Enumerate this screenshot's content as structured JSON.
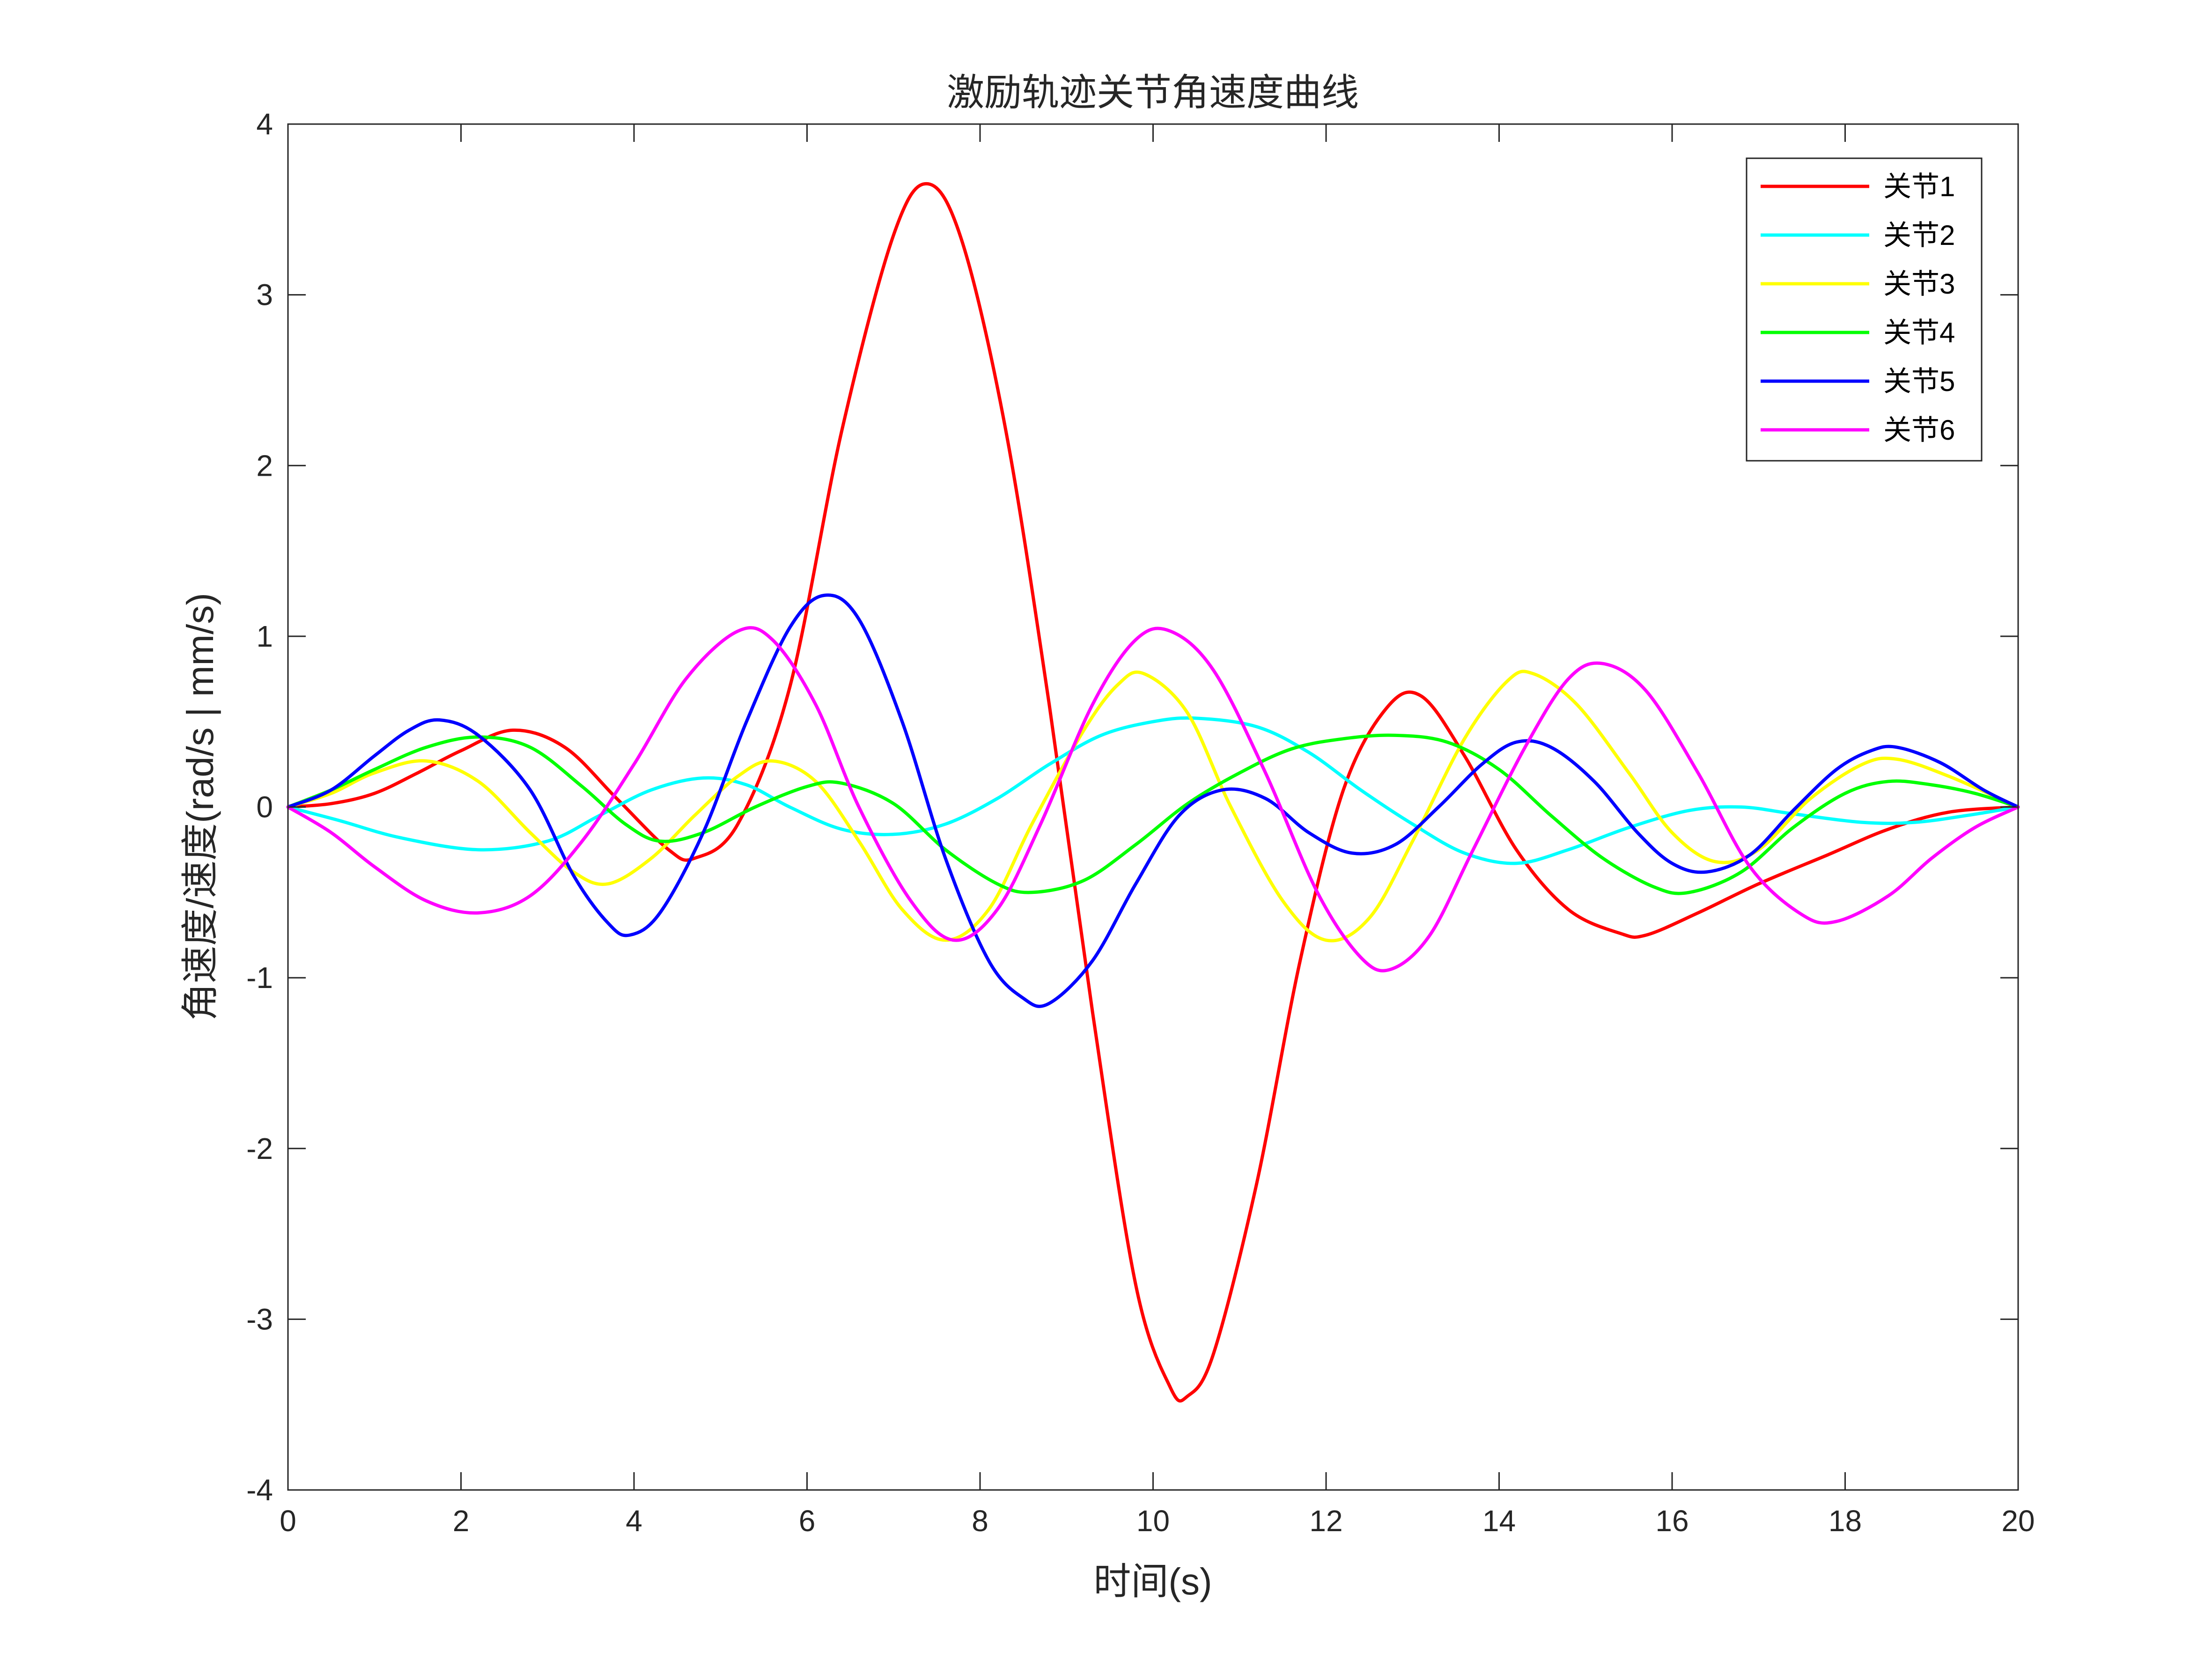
{
  "chart_data": {
    "type": "line",
    "title": "激励轨迹关节角速度曲线",
    "xlabel": "时间(s)",
    "ylabel": "角速度/速度(rad/s | mm/s)",
    "xlim": [
      0,
      20
    ],
    "ylim": [
      -4,
      4
    ],
    "x_ticks": [
      "0",
      "2",
      "4",
      "6",
      "8",
      "10",
      "12",
      "14",
      "16",
      "18",
      "20"
    ],
    "y_ticks": [
      "4",
      "3",
      "2",
      "1",
      "0",
      "-1",
      "-2",
      "-3",
      "-4"
    ],
    "grid": false,
    "legend_position": "top-right",
    "series": [
      {
        "name": "关节1",
        "color": "#FF0000",
        "points": [
          [
            0,
            0
          ],
          [
            0.5,
            0.02
          ],
          [
            1,
            0.08
          ],
          [
            1.5,
            0.2
          ],
          [
            2,
            0.33
          ],
          [
            2.6,
            0.45
          ],
          [
            3.2,
            0.35
          ],
          [
            3.8,
            0.05
          ],
          [
            4.4,
            -0.25
          ],
          [
            4.7,
            -0.3
          ],
          [
            5.2,
            -0.1
          ],
          [
            5.8,
            0.7
          ],
          [
            6.4,
            2.2
          ],
          [
            7,
            3.35
          ],
          [
            7.4,
            3.65
          ],
          [
            7.8,
            3.3
          ],
          [
            8.3,
            2.2
          ],
          [
            8.8,
            0.6
          ],
          [
            9.3,
            -1.2
          ],
          [
            9.8,
            -2.8
          ],
          [
            10.2,
            -3.4
          ],
          [
            10.4,
            -3.45
          ],
          [
            10.7,
            -3.2
          ],
          [
            11.2,
            -2.2
          ],
          [
            11.7,
            -0.9
          ],
          [
            12.2,
            0.1
          ],
          [
            12.7,
            0.58
          ],
          [
            13.1,
            0.65
          ],
          [
            13.6,
            0.3
          ],
          [
            14.2,
            -0.25
          ],
          [
            14.8,
            -0.6
          ],
          [
            15.4,
            -0.74
          ],
          [
            15.7,
            -0.75
          ],
          [
            16.3,
            -0.62
          ],
          [
            17,
            -0.45
          ],
          [
            17.8,
            -0.28
          ],
          [
            18.5,
            -0.13
          ],
          [
            19.2,
            -0.03
          ],
          [
            20,
            0
          ]
        ]
      },
      {
        "name": "关节2",
        "color": "#00FFFF",
        "points": [
          [
            0,
            0
          ],
          [
            0.6,
            -0.08
          ],
          [
            1.3,
            -0.18
          ],
          [
            2.2,
            -0.25
          ],
          [
            3,
            -0.2
          ],
          [
            3.6,
            -0.05
          ],
          [
            4.2,
            0.1
          ],
          [
            4.8,
            0.17
          ],
          [
            5.3,
            0.13
          ],
          [
            5.8,
            0
          ],
          [
            6.4,
            -0.13
          ],
          [
            7,
            -0.16
          ],
          [
            7.6,
            -0.1
          ],
          [
            8.2,
            0.05
          ],
          [
            8.8,
            0.25
          ],
          [
            9.4,
            0.42
          ],
          [
            10,
            0.5
          ],
          [
            10.5,
            0.52
          ],
          [
            11.2,
            0.47
          ],
          [
            11.8,
            0.32
          ],
          [
            12.4,
            0.1
          ],
          [
            13,
            -0.1
          ],
          [
            13.6,
            -0.27
          ],
          [
            14.2,
            -0.33
          ],
          [
            14.8,
            -0.25
          ],
          [
            15.5,
            -0.12
          ],
          [
            16.2,
            -0.02
          ],
          [
            16.8,
            0
          ],
          [
            17.4,
            -0.04
          ],
          [
            18.2,
            -0.09
          ],
          [
            18.8,
            -0.09
          ],
          [
            19.4,
            -0.05
          ],
          [
            20,
            0
          ]
        ]
      },
      {
        "name": "关节3",
        "color": "#FFFF00",
        "points": [
          [
            0,
            0
          ],
          [
            0.5,
            0.08
          ],
          [
            1,
            0.2
          ],
          [
            1.6,
            0.27
          ],
          [
            2.2,
            0.15
          ],
          [
            2.8,
            -0.15
          ],
          [
            3.3,
            -0.38
          ],
          [
            3.7,
            -0.45
          ],
          [
            4.2,
            -0.3
          ],
          [
            4.7,
            -0.05
          ],
          [
            5.2,
            0.18
          ],
          [
            5.6,
            0.27
          ],
          [
            6.1,
            0.15
          ],
          [
            6.6,
            -0.2
          ],
          [
            7.1,
            -0.6
          ],
          [
            7.6,
            -0.78
          ],
          [
            8.1,
            -0.6
          ],
          [
            8.6,
            -0.1
          ],
          [
            9.2,
            0.45
          ],
          [
            9.6,
            0.72
          ],
          [
            9.9,
            0.78
          ],
          [
            10.4,
            0.55
          ],
          [
            10.9,
            0
          ],
          [
            11.5,
            -0.55
          ],
          [
            12,
            -0.78
          ],
          [
            12.5,
            -0.65
          ],
          [
            13,
            -0.2
          ],
          [
            13.6,
            0.4
          ],
          [
            14.1,
            0.74
          ],
          [
            14.4,
            0.78
          ],
          [
            14.9,
            0.6
          ],
          [
            15.5,
            0.2
          ],
          [
            16,
            -0.15
          ],
          [
            16.5,
            -0.32
          ],
          [
            17,
            -0.25
          ],
          [
            17.6,
            0.05
          ],
          [
            18.2,
            0.25
          ],
          [
            18.6,
            0.28
          ],
          [
            19.2,
            0.18
          ],
          [
            20,
            0
          ]
        ]
      },
      {
        "name": "关节4",
        "color": "#00FF00",
        "points": [
          [
            0,
            0
          ],
          [
            0.5,
            0.1
          ],
          [
            1,
            0.22
          ],
          [
            1.6,
            0.35
          ],
          [
            2.2,
            0.41
          ],
          [
            2.8,
            0.35
          ],
          [
            3.4,
            0.12
          ],
          [
            3.9,
            -0.1
          ],
          [
            4.3,
            -0.2
          ],
          [
            4.8,
            -0.15
          ],
          [
            5.4,
            0
          ],
          [
            6,
            0.12
          ],
          [
            6.4,
            0.14
          ],
          [
            7,
            0.02
          ],
          [
            7.6,
            -0.25
          ],
          [
            8.2,
            -0.45
          ],
          [
            8.6,
            -0.5
          ],
          [
            9.2,
            -0.43
          ],
          [
            9.8,
            -0.22
          ],
          [
            10.4,
            0.02
          ],
          [
            11,
            0.2
          ],
          [
            11.6,
            0.34
          ],
          [
            12.2,
            0.4
          ],
          [
            12.8,
            0.42
          ],
          [
            13.4,
            0.38
          ],
          [
            14,
            0.22
          ],
          [
            14.6,
            -0.05
          ],
          [
            15.2,
            -0.3
          ],
          [
            15.8,
            -0.47
          ],
          [
            16.2,
            -0.5
          ],
          [
            16.8,
            -0.38
          ],
          [
            17.4,
            -0.12
          ],
          [
            18,
            0.08
          ],
          [
            18.5,
            0.15
          ],
          [
            19,
            0.13
          ],
          [
            19.5,
            0.08
          ],
          [
            20,
            0
          ]
        ]
      },
      {
        "name": "关节5",
        "color": "#0000FF",
        "points": [
          [
            0,
            0
          ],
          [
            0.5,
            0.1
          ],
          [
            1,
            0.3
          ],
          [
            1.4,
            0.45
          ],
          [
            1.75,
            0.51
          ],
          [
            2.2,
            0.42
          ],
          [
            2.8,
            0.1
          ],
          [
            3.3,
            -0.4
          ],
          [
            3.7,
            -0.68
          ],
          [
            3.95,
            -0.75
          ],
          [
            4.3,
            -0.62
          ],
          [
            4.8,
            -0.15
          ],
          [
            5.3,
            0.5
          ],
          [
            5.8,
            1.05
          ],
          [
            6.2,
            1.24
          ],
          [
            6.6,
            1.1
          ],
          [
            7.1,
            0.5
          ],
          [
            7.6,
            -0.3
          ],
          [
            8.1,
            -0.9
          ],
          [
            8.5,
            -1.12
          ],
          [
            8.8,
            -1.15
          ],
          [
            9.3,
            -0.9
          ],
          [
            9.8,
            -0.45
          ],
          [
            10.3,
            -0.05
          ],
          [
            10.8,
            0.1
          ],
          [
            11.3,
            0.05
          ],
          [
            11.8,
            -0.15
          ],
          [
            12.3,
            -0.27
          ],
          [
            12.8,
            -0.22
          ],
          [
            13.3,
            0
          ],
          [
            13.8,
            0.25
          ],
          [
            14.2,
            0.38
          ],
          [
            14.6,
            0.35
          ],
          [
            15.1,
            0.15
          ],
          [
            15.6,
            -0.15
          ],
          [
            16,
            -0.33
          ],
          [
            16.4,
            -0.38
          ],
          [
            16.9,
            -0.28
          ],
          [
            17.4,
            -0.02
          ],
          [
            17.9,
            0.22
          ],
          [
            18.3,
            0.33
          ],
          [
            18.6,
            0.35
          ],
          [
            19.1,
            0.26
          ],
          [
            19.6,
            0.1
          ],
          [
            20,
            0
          ]
        ]
      },
      {
        "name": "关节6",
        "color": "#FF00FF",
        "points": [
          [
            0,
            0
          ],
          [
            0.5,
            -0.15
          ],
          [
            1,
            -0.35
          ],
          [
            1.6,
            -0.55
          ],
          [
            2.2,
            -0.62
          ],
          [
            2.8,
            -0.52
          ],
          [
            3.4,
            -0.2
          ],
          [
            4,
            0.25
          ],
          [
            4.6,
            0.75
          ],
          [
            5.2,
            1.03
          ],
          [
            5.6,
            0.98
          ],
          [
            6.1,
            0.6
          ],
          [
            6.6,
            0
          ],
          [
            7.2,
            -0.55
          ],
          [
            7.7,
            -0.78
          ],
          [
            8.2,
            -0.6
          ],
          [
            8.7,
            -0.1
          ],
          [
            9.3,
            0.6
          ],
          [
            9.8,
            0.98
          ],
          [
            10.2,
            1.03
          ],
          [
            10.7,
            0.8
          ],
          [
            11.3,
            0.2
          ],
          [
            11.9,
            -0.5
          ],
          [
            12.4,
            -0.88
          ],
          [
            12.75,
            -0.95
          ],
          [
            13.2,
            -0.75
          ],
          [
            13.7,
            -0.25
          ],
          [
            14.3,
            0.35
          ],
          [
            14.8,
            0.75
          ],
          [
            15.2,
            0.84
          ],
          [
            15.7,
            0.68
          ],
          [
            16.3,
            0.2
          ],
          [
            16.9,
            -0.35
          ],
          [
            17.5,
            -0.63
          ],
          [
            17.9,
            -0.67
          ],
          [
            18.5,
            -0.52
          ],
          [
            19,
            -0.3
          ],
          [
            19.5,
            -0.12
          ],
          [
            20,
            0
          ]
        ]
      }
    ]
  }
}
